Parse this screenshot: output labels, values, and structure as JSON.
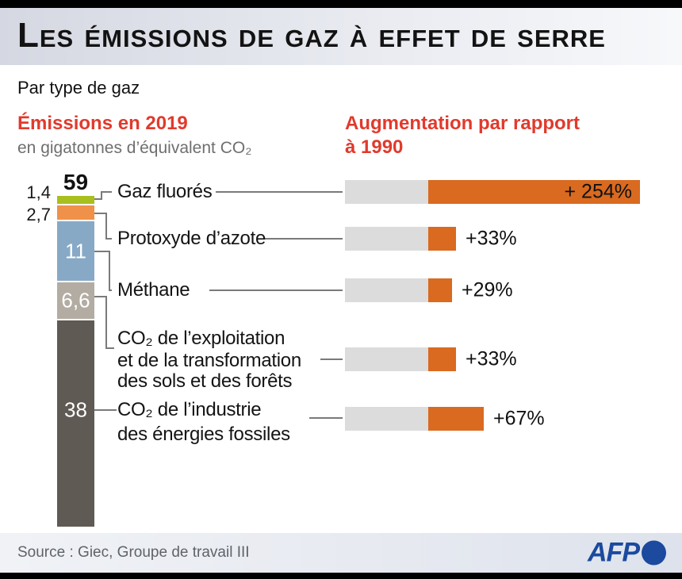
{
  "title": "Les émissions de gaz à effet de serre",
  "subtitle": "Par type de gaz",
  "left_header": {
    "title": "Émissions en 2019",
    "subtitle": "en gigatonnes d’équivalent CO₂"
  },
  "right_header": {
    "line1": "Augmentation par rapport",
    "line2": "à 1990"
  },
  "rows": [
    {
      "lines": [
        "Gaz fluorés"
      ]
    },
    {
      "lines": [
        "Protoxyde d’azote"
      ]
    },
    {
      "lines": [
        "Méthane"
      ]
    },
    {
      "lines": [
        "CO₂ de l’exploitation",
        "et de la transformation",
        "des sols et des forêts"
      ]
    },
    {
      "lines": [
        "CO₂ de l’industrie",
        "des énergies fossiles"
      ]
    }
  ],
  "chart_data": {
    "type": "bar",
    "stacked_bar": {
      "header": "Émissions en 2019",
      "unit": "en gigatonnes d’équivalent CO₂",
      "total": 59,
      "total_display": "59",
      "segments": [
        {
          "label": "Gaz fluorés",
          "value": 1.4,
          "display": "1,4",
          "color": "#a8bf1e",
          "label_position": "outside-left"
        },
        {
          "label": "Protoxyde d’azote",
          "value": 2.7,
          "display": "2,7",
          "color": "#f0914a",
          "label_position": "outside-left"
        },
        {
          "label": "Méthane",
          "value": 11,
          "display": "11",
          "color": "#87a9c6",
          "label_position": "inside"
        },
        {
          "label": "CO₂ de l’exploitation et de la transformation des sols et des forêts",
          "value": 6.6,
          "display": "6,6",
          "color": "#b3aca3",
          "label_position": "inside"
        },
        {
          "label": "CO₂ de l’industrie des énergies fossiles",
          "value": 38,
          "display": "38",
          "color": "#5f5a53",
          "label_position": "inside"
        }
      ]
    },
    "change_bars": {
      "header": "Augmentation par rapport à 1990",
      "baseline": 100,
      "values": [
        {
          "label": "Gaz fluorés",
          "pct": 254,
          "display": "+ 254%"
        },
        {
          "label": "Protoxyde d’azote",
          "pct": 33,
          "display": "+33%"
        },
        {
          "label": "Méthane",
          "pct": 29,
          "display": "+29%"
        },
        {
          "label": "CO₂ de l’exploitation et de la transformation des sols et des forêts",
          "pct": 33,
          "display": "+33%"
        },
        {
          "label": "CO₂ de l’industrie des énergies fossiles",
          "pct": 67,
          "display": "+67%"
        }
      ],
      "legend_hint": "gray = niveau 1990, orange = augmentation"
    }
  },
  "footer": {
    "source": "Source : Giec, Groupe de travail III",
    "logo_text": "AFP"
  },
  "colors": {
    "accent_red": "#e13a2c",
    "baseline_gray": "#dcdcdc",
    "increase_orange": "#d96a20",
    "afp_blue": "#1b4a9e",
    "connector_gray": "#7a7a7a"
  }
}
